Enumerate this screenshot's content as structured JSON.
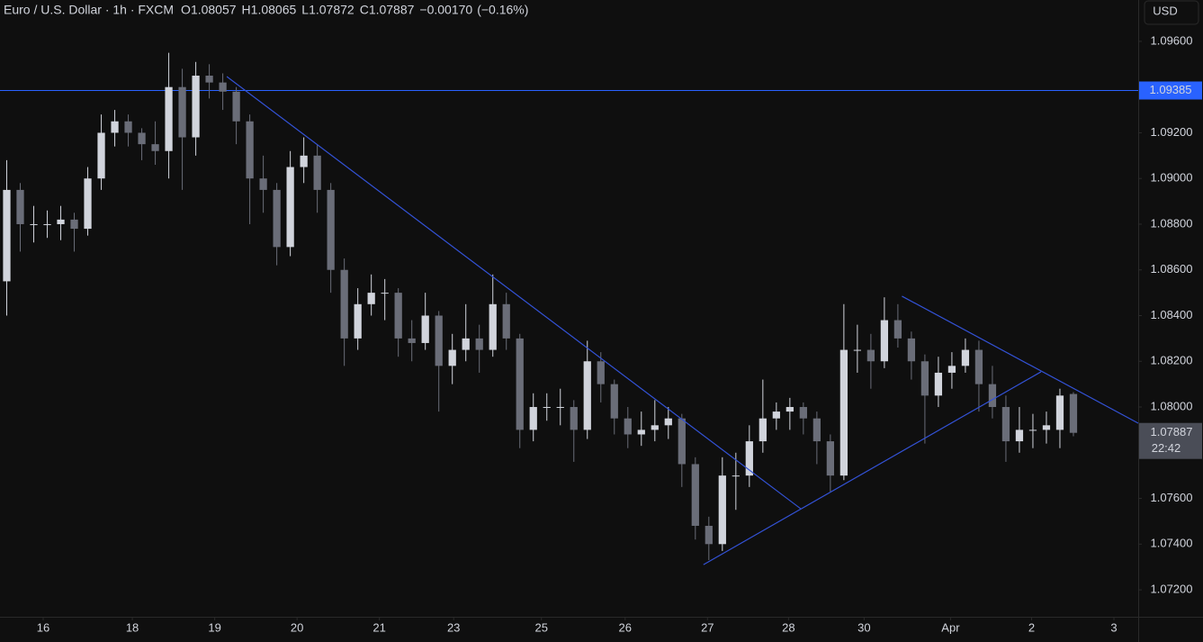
{
  "chart_data": {
    "type": "candlestick",
    "title": "Euro / U.S. Dollar · 1h · FXCM",
    "header": {
      "open": {
        "label": "O",
        "value": 1.08057
      },
      "high": {
        "label": "H",
        "value": 1.08065
      },
      "low": {
        "label": "L",
        "value": 1.07872
      },
      "close": {
        "label": "C",
        "value": 1.07887
      },
      "change": {
        "value": -0.0017,
        "label": "−0.00170"
      },
      "change_pct": {
        "value": -0.16,
        "label": "(−0.16%)"
      }
    },
    "currency": "USD",
    "x": [
      0,
      1,
      2,
      3,
      4,
      5,
      6,
      7,
      8,
      9,
      10,
      11,
      12,
      13,
      14,
      15,
      16,
      17,
      18,
      19,
      20,
      21,
      22,
      23,
      24,
      25,
      26,
      27,
      28,
      29,
      30,
      31,
      32,
      33,
      34,
      35,
      36,
      37,
      38,
      39,
      40,
      41,
      42,
      43,
      44,
      45,
      46,
      47,
      48,
      49,
      50,
      51,
      52,
      53,
      54,
      55,
      56,
      57,
      58,
      59,
      60,
      61,
      62,
      63,
      64,
      65,
      66,
      67,
      68,
      69,
      70,
      71,
      72,
      73,
      74,
      75,
      76,
      77,
      78,
      79
    ],
    "open": [
      1.0855,
      1.0895,
      1.088,
      1.088,
      1.088,
      1.0882,
      1.0878,
      1.09,
      1.092,
      1.0925,
      1.092,
      1.0915,
      1.0912,
      1.094,
      1.0918,
      1.0945,
      1.0942,
      1.0938,
      1.0925,
      1.09,
      1.0895,
      1.087,
      1.0905,
      1.091,
      1.0895,
      1.086,
      1.083,
      1.0845,
      1.085,
      1.085,
      1.083,
      1.0828,
      1.084,
      1.0818,
      1.0825,
      1.083,
      1.0825,
      1.0845,
      1.083,
      1.079,
      1.08,
      1.08,
      1.08,
      1.079,
      1.082,
      1.081,
      1.0795,
      1.0788,
      1.079,
      1.0792,
      1.0795,
      1.0775,
      1.0748,
      1.074,
      1.077,
      1.077,
      1.0785,
      1.0795,
      1.0798,
      1.08,
      1.0795,
      1.0785,
      1.077,
      1.0825,
      1.0825,
      1.082,
      1.0838,
      1.083,
      1.082,
      1.0805,
      1.0815,
      1.0818,
      1.0825,
      1.081,
      1.08,
      1.0785,
      1.079,
      1.079,
      1.079,
      1.08057
    ],
    "high": [
      1.0908,
      1.0898,
      1.0888,
      1.0886,
      1.0888,
      1.0885,
      1.0905,
      1.0928,
      1.093,
      1.0928,
      1.0922,
      1.0925,
      1.0955,
      1.0948,
      1.0951,
      1.095,
      1.0946,
      1.094,
      1.0928,
      1.091,
      1.0898,
      1.0912,
      1.0918,
      1.0915,
      1.0898,
      1.0865,
      1.0852,
      1.0858,
      1.0856,
      1.0852,
      1.0838,
      1.085,
      1.0842,
      1.0832,
      1.0845,
      1.0836,
      1.0858,
      1.085,
      1.0832,
      1.0806,
      1.0806,
      1.0808,
      1.0803,
      1.0829,
      1.0824,
      1.0812,
      1.08,
      1.0798,
      1.0803,
      1.08,
      1.0797,
      1.0778,
      1.0752,
      1.0778,
      1.078,
      1.0792,
      1.0812,
      1.0802,
      1.0804,
      1.0802,
      1.0798,
      1.0788,
      1.0845,
      1.0836,
      1.0832,
      1.0848,
      1.0845,
      1.0833,
      1.0823,
      1.0822,
      1.0824,
      1.083,
      1.0829,
      1.0818,
      1.0805,
      1.08,
      1.0797,
      1.0798,
      1.0808,
      1.08065
    ],
    "low": [
      1.084,
      1.0868,
      1.0872,
      1.0874,
      1.0873,
      1.0868,
      1.0875,
      1.0895,
      1.0914,
      1.0914,
      1.0908,
      1.0906,
      1.09,
      1.0895,
      1.091,
      1.0935,
      1.093,
      1.0915,
      1.088,
      1.0885,
      1.0862,
      1.0866,
      1.0898,
      1.0885,
      1.085,
      1.0818,
      1.0825,
      1.084,
      1.0838,
      1.0822,
      1.082,
      1.0825,
      1.0798,
      1.081,
      1.082,
      1.0815,
      1.0822,
      1.0825,
      1.0782,
      1.0785,
      1.0794,
      1.0792,
      1.0776,
      1.0786,
      1.0802,
      1.0788,
      1.0782,
      1.0783,
      1.0785,
      1.0786,
      1.0765,
      1.0742,
      1.0733,
      1.0737,
      1.0755,
      1.0765,
      1.078,
      1.079,
      1.079,
      1.0788,
      1.0775,
      1.0763,
      1.0768,
      1.0815,
      1.0808,
      1.0817,
      1.0826,
      1.0812,
      1.0784,
      1.08,
      1.0808,
      1.0815,
      1.0798,
      1.0795,
      1.0776,
      1.078,
      1.0782,
      1.0784,
      1.0782,
      1.07872
    ],
    "close": [
      1.0895,
      1.088,
      1.088,
      1.088,
      1.0882,
      1.0878,
      1.09,
      1.092,
      1.0925,
      1.092,
      1.0915,
      1.0912,
      1.094,
      1.0918,
      1.0945,
      1.0942,
      1.0938,
      1.0925,
      1.09,
      1.0895,
      1.087,
      1.0905,
      1.091,
      1.0895,
      1.086,
      1.083,
      1.0845,
      1.085,
      1.085,
      1.083,
      1.0828,
      1.084,
      1.0818,
      1.0825,
      1.083,
      1.0825,
      1.0845,
      1.083,
      1.079,
      1.08,
      1.08,
      1.08,
      1.079,
      1.082,
      1.081,
      1.0795,
      1.0788,
      1.079,
      1.0792,
      1.0795,
      1.0775,
      1.0748,
      1.074,
      1.077,
      1.077,
      1.0785,
      1.0795,
      1.0798,
      1.08,
      1.0795,
      1.0785,
      1.077,
      1.0825,
      1.0825,
      1.082,
      1.0838,
      1.083,
      1.082,
      1.0805,
      1.0815,
      1.0818,
      1.0825,
      1.081,
      1.08,
      1.0785,
      1.079,
      1.079,
      1.0792,
      1.0805,
      1.07887
    ],
    "up_color": "#d1d4dc",
    "down_color": "#6a6d78",
    "xlim": [
      -0.5,
      83.8
    ],
    "xticks": [
      {
        "value": 2.7,
        "label": "16"
      },
      {
        "value": 9.3,
        "label": "18"
      },
      {
        "value": 15.4,
        "label": "19"
      },
      {
        "value": 21.5,
        "label": "20"
      },
      {
        "value": 27.6,
        "label": "21"
      },
      {
        "value": 33.1,
        "label": "23"
      },
      {
        "value": 39.6,
        "label": "25"
      },
      {
        "value": 45.8,
        "label": "26"
      },
      {
        "value": 51.9,
        "label": "27"
      },
      {
        "value": 57.9,
        "label": "28"
      },
      {
        "value": 63.5,
        "label": "30"
      },
      {
        "value": 69.9,
        "label": "Apr"
      },
      {
        "value": 75.9,
        "label": "2"
      },
      {
        "value": 82.0,
        "label": "3"
      }
    ],
    "ylim": [
      1.07082,
      1.09781
    ],
    "yticks": [
      {
        "value": 1.072,
        "label": "1.07200"
      },
      {
        "value": 1.074,
        "label": "1.07400"
      },
      {
        "value": 1.076,
        "label": "1.07600"
      },
      {
        "value": 1.078,
        "label": "1.07800"
      },
      {
        "value": 1.08,
        "label": "1.08000"
      },
      {
        "value": 1.082,
        "label": "1.08200"
      },
      {
        "value": 1.084,
        "label": "1.08400"
      },
      {
        "value": 1.086,
        "label": "1.08600"
      },
      {
        "value": 1.088,
        "label": "1.08800"
      },
      {
        "value": 1.09,
        "label": "1.09000"
      },
      {
        "value": 1.092,
        "label": "1.09200"
      },
      {
        "value": 1.094,
        "label": "1.09400"
      },
      {
        "value": 1.096,
        "label": "1.09600"
      }
    ],
    "hline": {
      "value": 1.09385,
      "color": "#2962ff"
    },
    "last_price": {
      "value": 1.07887,
      "countdown": "22:42",
      "color": "#4a4d57"
    },
    "trendline_color": "#3352d6",
    "trendlines": [
      {
        "x": [
          16.3,
          58.8
        ],
        "y": [
          1.09446,
          1.07555
        ]
      },
      {
        "x": [
          51.6,
          76.6
        ],
        "y": [
          1.0731,
          1.08154
        ]
      },
      {
        "x": [
          66.3,
          83.8
        ],
        "y": [
          1.08485,
          1.07929
        ]
      }
    ]
  }
}
